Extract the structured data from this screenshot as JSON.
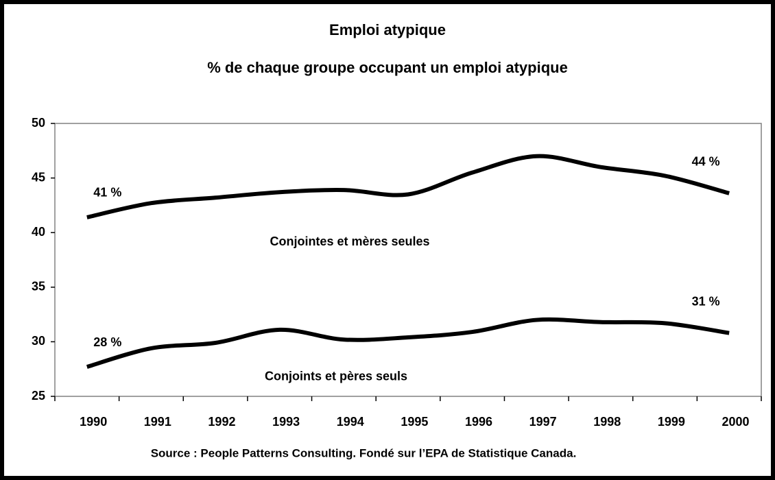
{
  "chart_data": {
    "type": "line",
    "title": "Emploi atypique",
    "subtitle": "% de chaque groupe occupant un emploi atypique",
    "source": "Source : People Patterns Consulting.  Fondé sur l’EPA de Statistique Canada.",
    "categories": [
      "1990",
      "1991",
      "1992",
      "1993",
      "1994",
      "1995",
      "1996",
      "1997",
      "1998",
      "1999",
      "2000"
    ],
    "series": [
      {
        "name": "Conjointes et mères seules",
        "color": "#000000",
        "values": [
          41.4,
          42.7,
          43.2,
          43.7,
          43.9,
          43.5,
          45.5,
          47.0,
          46.0,
          45.2,
          43.6
        ],
        "value_labels": [
          "41 %",
          null,
          null,
          null,
          null,
          null,
          null,
          null,
          null,
          null,
          "44 %"
        ]
      },
      {
        "name": "Conjoints et pères seuls",
        "color": "#000000",
        "values": [
          27.7,
          29.4,
          29.9,
          31.1,
          30.2,
          30.4,
          30.9,
          32.0,
          31.8,
          31.7,
          30.8
        ],
        "value_labels": [
          "28 %",
          null,
          null,
          null,
          null,
          null,
          null,
          null,
          null,
          null,
          "31 %"
        ]
      }
    ],
    "ylim": [
      25,
      50
    ],
    "yticks": [
      25,
      30,
      35,
      40,
      45,
      50
    ],
    "grid": false
  }
}
